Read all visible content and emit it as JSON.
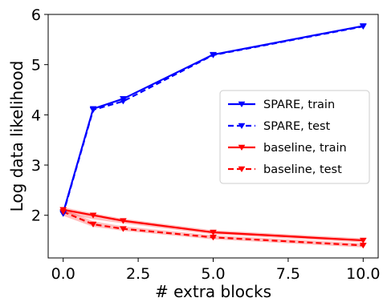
{
  "chart_data": {
    "type": "line",
    "xlabel": "# extra blocks",
    "ylabel": "Log data likelihood",
    "xlim": [
      -0.5,
      10.5
    ],
    "ylim": [
      1.15,
      6.0
    ],
    "xticks": [
      0.0,
      2.5,
      5.0,
      7.5,
      10.0
    ],
    "xtick_labels": [
      "0.0",
      "2.5",
      "5.0",
      "7.5",
      "10.0"
    ],
    "yticks": [
      2,
      3,
      4,
      5,
      6
    ],
    "ytick_labels": [
      "2",
      "3",
      "4",
      "5",
      "6"
    ],
    "grid": false,
    "legend_position": "center-right",
    "series": [
      {
        "name": "SPARE, train",
        "color": "#0000ff",
        "linestyle": "solid",
        "marker": "triangle-down",
        "x": [
          0,
          1,
          2,
          5,
          10
        ],
        "y": [
          2.05,
          4.12,
          4.32,
          5.2,
          5.77
        ]
      },
      {
        "name": "SPARE, test",
        "color": "#0000ff",
        "linestyle": "dashed",
        "marker": "triangle-down",
        "x": [
          0,
          1,
          2,
          5,
          10
        ],
        "y": [
          2.03,
          4.1,
          4.27,
          5.19,
          5.76
        ]
      },
      {
        "name": "baseline, train",
        "color": "#ff0000",
        "linestyle": "solid",
        "marker": "triangle-down",
        "x": [
          0,
          1,
          2,
          5,
          10
        ],
        "y": [
          2.11,
          2.0,
          1.89,
          1.66,
          1.5
        ],
        "band_lower": [
          2.05,
          1.92,
          1.84,
          1.62,
          1.46
        ],
        "band_upper": [
          2.16,
          2.04,
          1.93,
          1.7,
          1.54
        ]
      },
      {
        "name": "baseline, test",
        "color": "#ff0000",
        "linestyle": "dashed",
        "marker": "triangle-down",
        "x": [
          0,
          1,
          2,
          5,
          10
        ],
        "y": [
          2.07,
          1.82,
          1.73,
          1.56,
          1.4
        ],
        "band_lower": [
          1.99,
          1.77,
          1.69,
          1.52,
          1.36
        ],
        "band_upper": [
          2.13,
          1.88,
          1.78,
          1.6,
          1.44
        ]
      }
    ]
  }
}
